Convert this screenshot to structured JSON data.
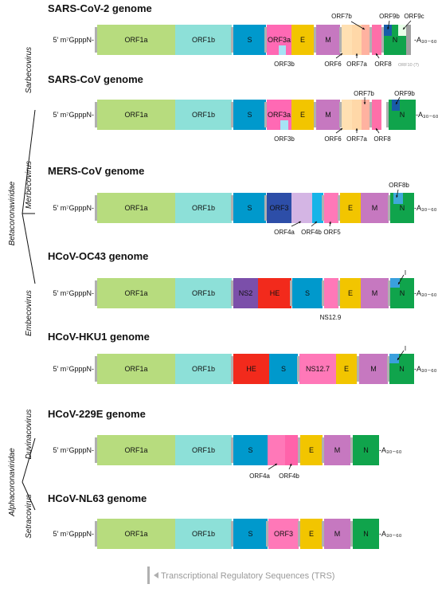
{
  "colors": {
    "ORF1a": "#b7dc7e",
    "ORF1b": "#8de0d8",
    "S": "#0099cc",
    "ORF3a": "#ff69b4",
    "ORF3b": "#a6e3f5",
    "E": "#f2c500",
    "M": "#c678c0",
    "ORF6": "#ffe0b2",
    "ORF7a": "#ffd8a8",
    "ORF7b": "#ffb2a0",
    "ORF8": "#ff6fa9",
    "ORF8b": "#3fa9d9",
    "N": "#10a44c",
    "ORF9b": "#185ca8",
    "ORF9c": "#e8ffe8",
    "ORF10": "#a0a0a0",
    "ORF3_mers": "#2d4ea8",
    "ORF4a": "#d4b5e4",
    "ORF4b": "#17b4e8",
    "ORF5": "#ff78b8",
    "NS2": "#7b4faa",
    "HE": "#f22a1c",
    "NS12.9": "#ff74b2",
    "NS12.7": "#ff6fa9",
    "I": "#3aa0dd",
    "ORF4a_229": "#ff78b8",
    "ORF4b_229": "#ff63aa",
    "ORF3_nl63": "#ff78b8",
    "TRS": "#b0b0b0"
  },
  "taxonomy": {
    "betacoronaviridae": "Betacoronaviridae",
    "alphacoronaviridae": "Alphacoronaviridae",
    "sarbecovirus": "Sarbecovirus",
    "merbecovirus": "Merbecovirus",
    "embecovirus": "Embecovirus",
    "duvinacovirus": "Duvinacovirus",
    "setracovirus": "Setracovirus"
  },
  "prefix": "5′ m⁷GpppN-",
  "polyA": "-A₃₀₋₆₀",
  "genomes": [
    {
      "title": "SARS-CoV-2 genome",
      "segments": [
        "ORF1a",
        "ORF1b",
        "S",
        "ORF3a",
        "E",
        "M",
        "N"
      ],
      "annotations": [
        "ORF3b",
        "ORF6",
        "ORF7a",
        "ORF7b",
        "ORF8",
        "ORF9b",
        "ORF9c",
        "ORF10 (?)"
      ]
    },
    {
      "title": "SARS-CoV genome",
      "segments": [
        "ORF1a",
        "ORF1b",
        "S",
        "ORF3a",
        "E",
        "M",
        "N"
      ],
      "annotations": [
        "ORF3b",
        "ORF6",
        "ORF7a",
        "ORF7b",
        "ORF8",
        "ORF9b"
      ]
    },
    {
      "title": "MERS-CoV genome",
      "segments": [
        "ORF1a",
        "ORF1b",
        "S",
        "ORF3",
        "E",
        "M",
        "N"
      ],
      "annotations": [
        "ORF4a",
        "ORF4b",
        "ORF5",
        "ORF8b"
      ]
    },
    {
      "title": "HCoV-OC43 genome",
      "segments": [
        "ORF1a",
        "ORF1b",
        "NS2",
        "HE",
        "S",
        "E",
        "M",
        "N"
      ],
      "annotations": [
        "NS12.9",
        "I"
      ]
    },
    {
      "title": "HCoV-HKU1 genome",
      "segments": [
        "ORF1a",
        "ORF1b",
        "HE",
        "S",
        "NS12.7",
        "E",
        "M",
        "N"
      ],
      "annotations": [
        "I"
      ]
    },
    {
      "title": "HCoV-229E genome",
      "segments": [
        "ORF1a",
        "ORF1b",
        "S",
        "E",
        "M",
        "N"
      ],
      "annotations": [
        "ORF4a",
        "ORF4b"
      ]
    },
    {
      "title": "HCoV-NL63 genome",
      "segments": [
        "ORF1a",
        "ORF1b",
        "S",
        "ORF3",
        "E",
        "M",
        "N"
      ],
      "annotations": []
    }
  ],
  "legend": {
    "label": "Transcriptional Regulatory Sequences (TRS)"
  }
}
